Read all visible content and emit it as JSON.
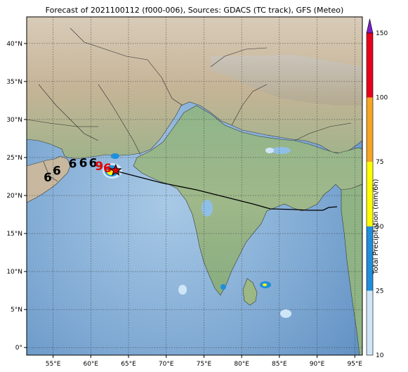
{
  "title": "Forecast of 2021100112 (f000-006), Sources: GDACS (TC track), GFS (Meteo)",
  "map": {
    "lon_range": [
      51.5,
      96.0
    ],
    "lat_range": [
      -1.0,
      43.5
    ],
    "lon_ticks": [
      "55°E",
      "60°E",
      "65°E",
      "70°E",
      "75°E",
      "80°E",
      "85°E",
      "90°E",
      "95°E"
    ],
    "lat_ticks": [
      "0°",
      "5°N",
      "10°N",
      "15°N",
      "20°N",
      "25°N",
      "30°N",
      "35°N",
      "40°N"
    ],
    "grid": true
  },
  "colorbar": {
    "label": "Total Precipitation (mm/6h)",
    "ticks": [
      "10",
      "25",
      "50",
      "75",
      "100",
      "150"
    ],
    "colors": [
      "#cfe6f8",
      "#1f8fdc",
      "#ffff00",
      "#f5a623",
      "#e8001c",
      "#7b20c8"
    ]
  },
  "track": {
    "current_marker": "star",
    "current_lon": 63.3,
    "current_lat": 23.3,
    "symbols": [
      {
        "glyph": "6",
        "lon": 54.3,
        "lat": 22.4,
        "color": "#000000"
      },
      {
        "glyph": "6",
        "lon": 55.5,
        "lat": 23.3,
        "color": "#000000"
      },
      {
        "glyph": "6",
        "lon": 57.6,
        "lat": 24.2,
        "color": "#000000"
      },
      {
        "glyph": "6",
        "lon": 59.0,
        "lat": 24.3,
        "color": "#000000"
      },
      {
        "glyph": "6",
        "lon": 60.3,
        "lat": 24.3,
        "color": "#000000"
      },
      {
        "glyph": "9",
        "lon": 61.1,
        "lat": 23.9,
        "color": "#e00000"
      },
      {
        "glyph": "6",
        "lon": 62.2,
        "lat": 23.6,
        "color": "#e00000"
      }
    ]
  }
}
